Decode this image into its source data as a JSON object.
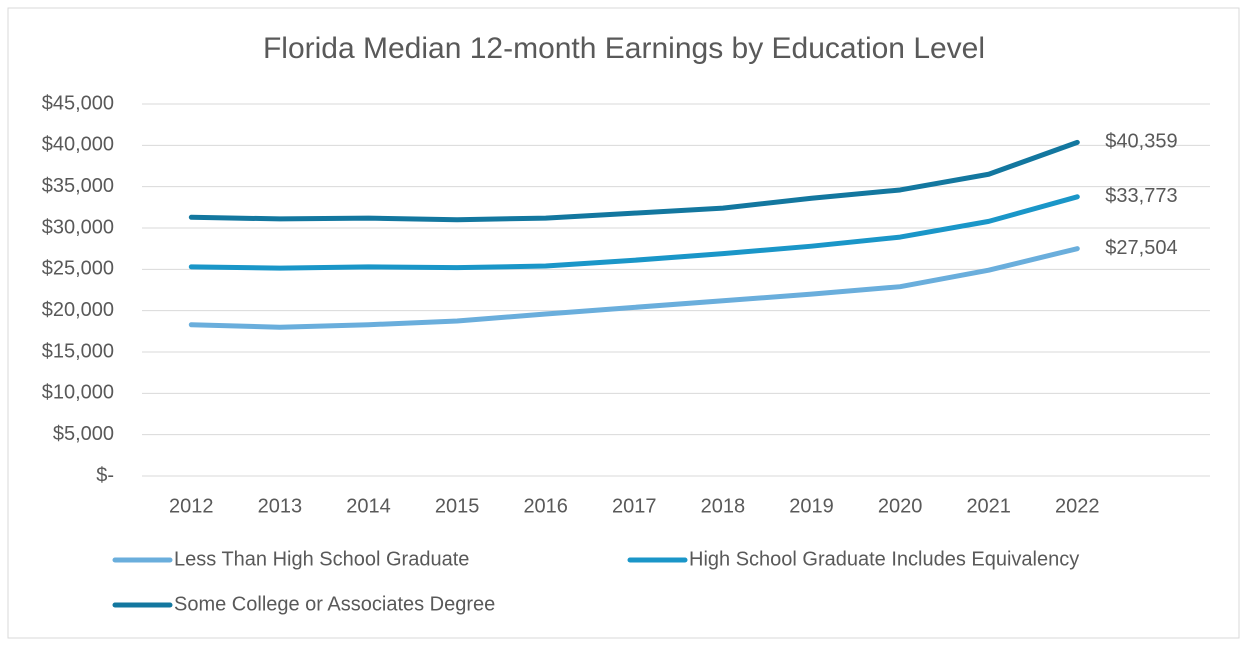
{
  "chart_data": {
    "type": "line",
    "title": "Florida Median 12-month Earnings by Education Level",
    "categories": [
      "2012",
      "2013",
      "2014",
      "2015",
      "2016",
      "2017",
      "2018",
      "2019",
      "2020",
      "2021",
      "2022"
    ],
    "series": [
      {
        "name": "Less Than High School Graduate",
        "color": "#6aaedc",
        "values": [
          18300,
          18000,
          18300,
          18750,
          19600,
          20400,
          21200,
          22000,
          22900,
          24900,
          27504
        ],
        "value_labels": [
          null,
          null,
          null,
          null,
          null,
          null,
          null,
          null,
          null,
          null,
          "$27,504"
        ]
      },
      {
        "name": "High School Graduate Includes Equivalency",
        "color": "#1a96c8",
        "values": [
          25300,
          25150,
          25300,
          25200,
          25400,
          26100,
          26900,
          27800,
          28900,
          30800,
          33773
        ],
        "value_labels": [
          null,
          null,
          null,
          null,
          null,
          null,
          null,
          null,
          null,
          null,
          "$33,773"
        ]
      },
      {
        "name": "Some College or Associates Degree",
        "color": "#13779f",
        "values": [
          31300,
          31100,
          31200,
          31000,
          31200,
          31800,
          32400,
          33600,
          34600,
          36500,
          40359
        ],
        "value_labels": [
          null,
          null,
          null,
          null,
          null,
          null,
          null,
          null,
          null,
          null,
          "$40,359"
        ]
      }
    ],
    "ylim": [
      0,
      45000
    ],
    "yticks": [
      {
        "value": 0,
        "label": "$-"
      },
      {
        "value": 5000,
        "label": "$5,000"
      },
      {
        "value": 10000,
        "label": "$10,000"
      },
      {
        "value": 15000,
        "label": "$15,000"
      },
      {
        "value": 20000,
        "label": "$20,000"
      },
      {
        "value": 25000,
        "label": "$25,000"
      },
      {
        "value": 30000,
        "label": "$30,000"
      },
      {
        "value": 35000,
        "label": "$35,000"
      },
      {
        "value": 40000,
        "label": "$40,000"
      },
      {
        "value": 45000,
        "label": "$45,000"
      }
    ],
    "grid": true,
    "legend": "bottom"
  }
}
